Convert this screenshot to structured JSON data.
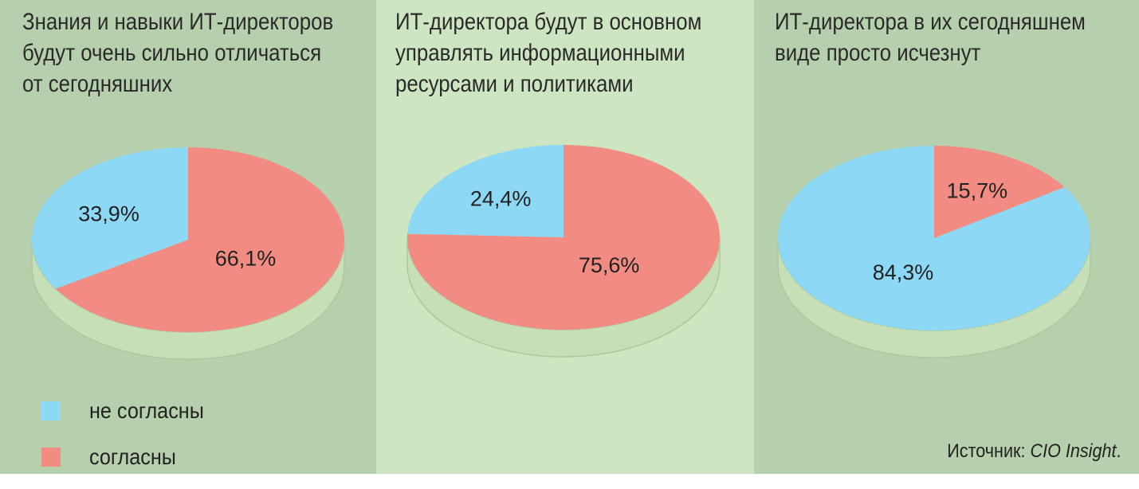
{
  "colors": {
    "disagree": "#8dd8f5",
    "agree": "#f28b81",
    "panel_dark": "#b6cfac",
    "panel_light": "#cde6c1",
    "pie_side": "#c6dfb6"
  },
  "legend": {
    "items": [
      {
        "label": "не согласны",
        "color": "#8dd8f5"
      },
      {
        "label": "согласны",
        "color": "#f28b81"
      }
    ]
  },
  "source": {
    "prefix": "Источник: ",
    "name": "CIO Insight",
    "suffix": "."
  },
  "chart_data": [
    {
      "type": "pie",
      "title": "Знания и навыки ИТ-директоров будут очень сильно отличаться от сегодняшних",
      "title_lines": [
        "Знания и навыки ИТ-директоров",
        "будут очень сильно отличаться",
        "от сегодняшних"
      ],
      "slices": [
        {
          "name": "согласны",
          "value": 66.1,
          "label": "66,1%",
          "color": "#f28b81"
        },
        {
          "name": "не согласны",
          "value": 33.9,
          "label": "33,9%",
          "color": "#8dd8f5"
        }
      ]
    },
    {
      "type": "pie",
      "title": "ИТ-директора будут в основном управлять информационными ресурсами и политиками",
      "title_lines": [
        "ИТ-директора будут в основном",
        "управлять информационными",
        "ресурсами и политиками"
      ],
      "slices": [
        {
          "name": "согласны",
          "value": 75.6,
          "label": "75,6%",
          "color": "#f28b81"
        },
        {
          "name": "не согласны",
          "value": 24.4,
          "label": "24,4%",
          "color": "#8dd8f5"
        }
      ]
    },
    {
      "type": "pie",
      "title": "ИТ-директора в их сегодняшнем виде просто исчезнут",
      "title_lines": [
        "ИТ-директора в их сегодняшнем",
        "виде просто исчезнут"
      ],
      "slices": [
        {
          "name": "согласны",
          "value": 15.7,
          "label": "15,7%",
          "color": "#f28b81"
        },
        {
          "name": "не согласны",
          "value": 84.3,
          "label": "84,3%",
          "color": "#8dd8f5"
        }
      ]
    }
  ]
}
